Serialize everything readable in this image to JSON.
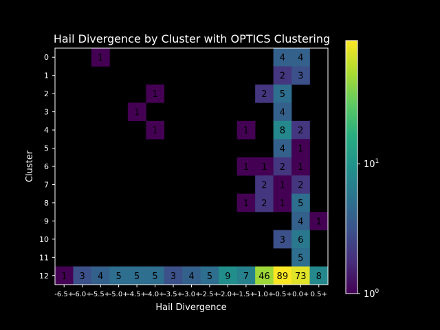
{
  "chart_data": {
    "type": "heatmap",
    "title": "Hail Divergence by Cluster with OPTICS Clustering",
    "xlabel": "Hail Divergence",
    "ylabel": "Cluster",
    "x_categories": [
      "-6.5+",
      "-6.0+",
      "-5.5+",
      "-5.0+",
      "-4.5+",
      "-4.0+",
      "-3.5+",
      "-3.0+",
      "-2.5+",
      "-2.0+",
      "-1.5+",
      "-1.0+",
      "-0.5+",
      "0.0+",
      "0.5+"
    ],
    "y_categories": [
      "0",
      "1",
      "2",
      "3",
      "4",
      "5",
      "6",
      "7",
      "8",
      "9",
      "10",
      "11",
      "12"
    ],
    "values": [
      [
        null,
        null,
        1,
        null,
        null,
        null,
        null,
        null,
        null,
        null,
        null,
        null,
        4,
        4,
        null
      ],
      [
        null,
        null,
        null,
        null,
        null,
        null,
        null,
        null,
        null,
        null,
        null,
        null,
        2,
        3,
        null
      ],
      [
        null,
        null,
        null,
        null,
        null,
        1,
        null,
        null,
        null,
        null,
        null,
        2,
        5,
        null,
        null
      ],
      [
        null,
        null,
        null,
        null,
        1,
        null,
        null,
        null,
        null,
        null,
        null,
        null,
        4,
        null,
        null
      ],
      [
        null,
        null,
        null,
        null,
        null,
        1,
        null,
        null,
        null,
        null,
        1,
        null,
        8,
        2,
        null
      ],
      [
        null,
        null,
        null,
        null,
        null,
        null,
        null,
        null,
        null,
        null,
        null,
        null,
        4,
        1,
        null
      ],
      [
        null,
        null,
        null,
        null,
        null,
        null,
        null,
        null,
        null,
        null,
        1,
        1,
        2,
        1,
        null
      ],
      [
        null,
        null,
        null,
        null,
        null,
        null,
        null,
        null,
        null,
        null,
        null,
        2,
        1,
        2,
        null
      ],
      [
        null,
        null,
        null,
        null,
        null,
        null,
        null,
        null,
        null,
        null,
        1,
        2,
        1,
        5,
        null
      ],
      [
        null,
        null,
        null,
        null,
        null,
        null,
        null,
        null,
        null,
        null,
        null,
        null,
        null,
        4,
        1
      ],
      [
        null,
        null,
        null,
        null,
        null,
        null,
        null,
        null,
        null,
        null,
        null,
        null,
        3,
        6,
        null
      ],
      [
        null,
        null,
        null,
        null,
        null,
        null,
        null,
        null,
        null,
        null,
        null,
        null,
        null,
        5,
        null
      ],
      [
        1,
        3,
        4,
        5,
        5,
        5,
        3,
        4,
        5,
        9,
        7,
        46,
        89,
        73,
        8
      ]
    ],
    "color_scale": "log",
    "colormap": "viridis",
    "vmin": 1,
    "vmax": 89,
    "colorbar_ticks": [
      {
        "base": "10",
        "exp": "0",
        "value": 1
      },
      {
        "base": "10",
        "exp": "1",
        "value": 10
      }
    ],
    "grid": false,
    "background": "#000000",
    "text_color": "#ffffff",
    "cell_text_color": "#000000"
  }
}
